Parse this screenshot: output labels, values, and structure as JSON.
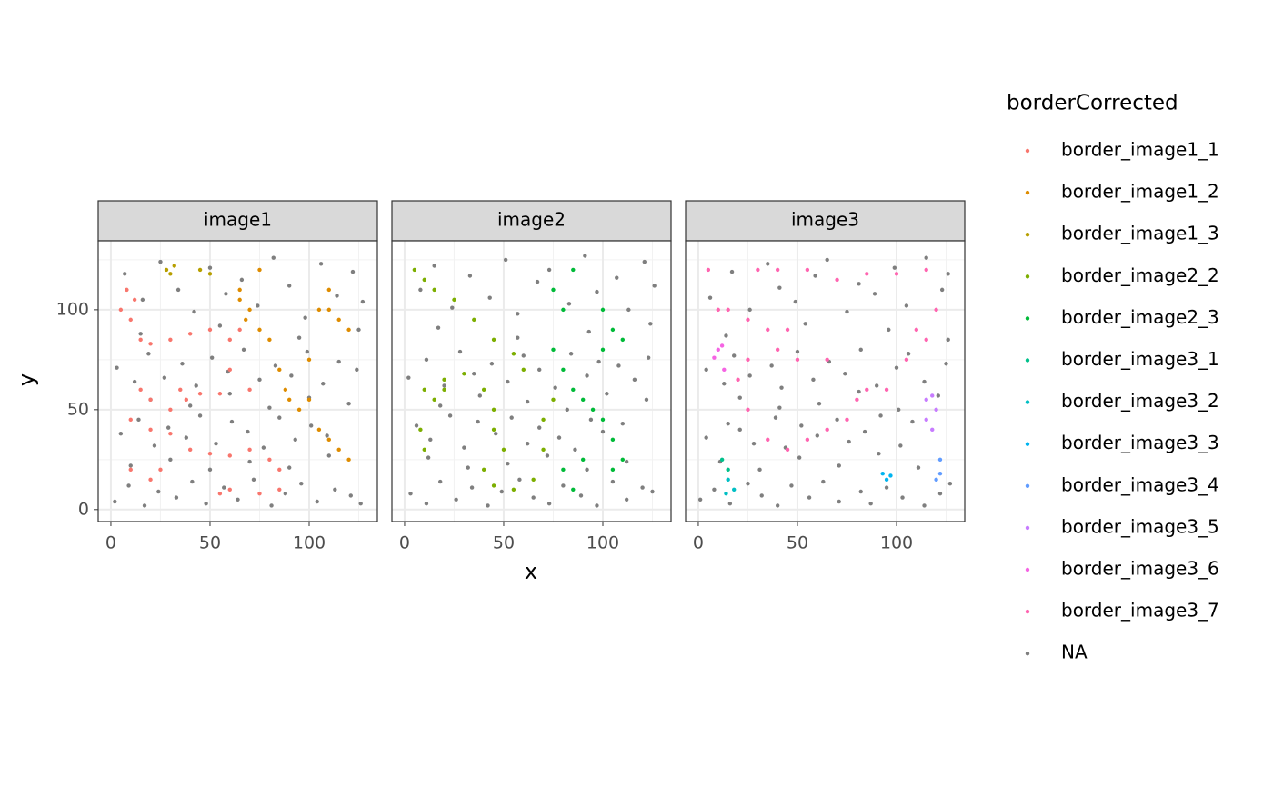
{
  "chart_data": {
    "type": "scatter",
    "xlabel": "x",
    "ylabel": "y",
    "legend_title": "borderCorrected",
    "facets": [
      "image1",
      "image2",
      "image3"
    ],
    "xlim": [
      -6.4,
      134.4
    ],
    "ylim": [
      -6,
      134.5
    ],
    "xticks": [
      0,
      50,
      100
    ],
    "yticks": [
      0,
      50,
      100
    ],
    "minor_ticks": [
      25,
      75,
      125
    ],
    "grid": true,
    "series": [
      {
        "name": "border_image1_1",
        "color": "#F8766D",
        "facet": "image1",
        "x": [
          5,
          10,
          15,
          20,
          30,
          40,
          50,
          60,
          15,
          20,
          30,
          35,
          45,
          55,
          10,
          20,
          30,
          40,
          50,
          60,
          70,
          80,
          85,
          10,
          20,
          55,
          60,
          75,
          85,
          25,
          65,
          60,
          70,
          8,
          12,
          38
        ],
        "values": [
          100,
          95,
          85,
          83,
          85,
          88,
          90,
          85,
          60,
          55,
          50,
          60,
          58,
          58,
          45,
          40,
          38,
          30,
          28,
          27,
          30,
          25,
          20,
          20,
          15,
          8,
          10,
          8,
          10,
          20,
          90,
          70,
          60,
          110,
          105,
          55
        ]
      },
      {
        "name": "border_image1_2",
        "color": "#DE8C00",
        "facet": "image1",
        "x": [
          65,
          70,
          75,
          80,
          85,
          90,
          95,
          100,
          105,
          110,
          115,
          120,
          100,
          105,
          110,
          115,
          120,
          75,
          65,
          110,
          68,
          88
        ],
        "values": [
          110,
          100,
          90,
          85,
          70,
          55,
          50,
          75,
          100,
          110,
          95,
          90,
          55,
          40,
          35,
          30,
          25,
          120,
          105,
          100,
          95,
          60
        ]
      },
      {
        "name": "border_image1_3",
        "color": "#B79F00",
        "facet": "image1",
        "x": [
          28,
          32,
          30,
          45,
          50
        ],
        "values": [
          120,
          122,
          118,
          120,
          118
        ]
      },
      {
        "name": "border_image2_2",
        "color": "#7CAE00",
        "facet": "image2",
        "x": [
          5,
          10,
          15,
          25,
          35,
          45,
          55,
          60,
          10,
          15,
          20,
          30,
          40,
          45,
          45,
          50,
          40,
          45,
          55,
          65,
          70,
          70,
          75,
          8,
          10,
          20
        ],
        "values": [
          120,
          115,
          110,
          105,
          95,
          85,
          78,
          70,
          60,
          55,
          65,
          68,
          60,
          50,
          40,
          30,
          20,
          12,
          10,
          15,
          30,
          45,
          55,
          40,
          30,
          60
        ]
      },
      {
        "name": "border_image2_3",
        "color": "#00BA38",
        "facet": "image2",
        "x": [
          75,
          80,
          85,
          75,
          80,
          85,
          90,
          95,
          100,
          105,
          110,
          105,
          90,
          80,
          85,
          100,
          105,
          110,
          100
        ],
        "values": [
          110,
          100,
          120,
          80,
          70,
          60,
          55,
          50,
          45,
          35,
          25,
          20,
          25,
          20,
          10,
          100,
          90,
          85,
          80
        ]
      },
      {
        "name": "border_image3_1",
        "color": "#00C08B",
        "facet": "image3",
        "x": [
          12,
          15
        ],
        "values": [
          25,
          20
        ]
      },
      {
        "name": "border_image3_2",
        "color": "#00BFC4",
        "facet": "image3",
        "x": [
          15,
          18,
          14
        ],
        "values": [
          15,
          10,
          8
        ]
      },
      {
        "name": "border_image3_3",
        "color": "#00B4F0",
        "facet": "image3",
        "x": [
          93,
          97,
          95
        ],
        "values": [
          18,
          17,
          15
        ]
      },
      {
        "name": "border_image3_4",
        "color": "#619CFF",
        "facet": "image3",
        "x": [
          120,
          122,
          122
        ],
        "values": [
          15,
          18,
          25
        ]
      },
      {
        "name": "border_image3_5",
        "color": "#C77CFF",
        "facet": "image3",
        "x": [
          115,
          118,
          115,
          118,
          120
        ],
        "values": [
          55,
          57,
          45,
          40,
          50
        ]
      },
      {
        "name": "border_image3_6",
        "color": "#F564E3",
        "facet": "image3",
        "x": [
          10,
          12,
          8,
          13
        ],
        "values": [
          80,
          82,
          76,
          70
        ]
      },
      {
        "name": "border_image3_7",
        "color": "#FF64B0",
        "facet": "image3",
        "x": [
          5,
          10,
          15,
          25,
          35,
          45,
          30,
          40,
          55,
          70,
          85,
          100,
          115,
          110,
          115,
          120,
          105,
          95,
          85,
          75,
          65,
          55,
          45,
          35,
          25,
          20,
          25,
          40,
          50,
          65,
          80
        ],
        "values": [
          120,
          100,
          100,
          95,
          90,
          90,
          120,
          120,
          120,
          115,
          118,
          118,
          120,
          90,
          85,
          100,
          75,
          60,
          60,
          45,
          40,
          35,
          30,
          35,
          50,
          65,
          75,
          80,
          75,
          75,
          55
        ]
      },
      {
        "name": "NA",
        "color": "#7F7F7F",
        "facet": "image1",
        "x": [
          2,
          9,
          17,
          24,
          33,
          41,
          48,
          57,
          64,
          72,
          81,
          88,
          96,
          104,
          113,
          121,
          126,
          5,
          14,
          22,
          29,
          38,
          45,
          53,
          61,
          69,
          77,
          85,
          93,
          101,
          109,
          3,
          12,
          19,
          27,
          36,
          43,
          51,
          59,
          67,
          75,
          83,
          91,
          99,
          107,
          115,
          124,
          7,
          16,
          25,
          34,
          42,
          50,
          58,
          66,
          74,
          82,
          90,
          98,
          106,
          114,
          122,
          127,
          10,
          30,
          50,
          70,
          90,
          110,
          20,
          40,
          60,
          80,
          100,
          120,
          15,
          55,
          95,
          125
        ],
        "values": [
          4,
          12,
          2,
          9,
          6,
          14,
          3,
          11,
          5,
          15,
          2,
          8,
          13,
          4,
          10,
          7,
          3,
          38,
          45,
          32,
          41,
          36,
          47,
          33,
          44,
          39,
          31,
          46,
          35,
          42,
          37,
          71,
          64,
          78,
          66,
          73,
          62,
          76,
          69,
          80,
          65,
          72,
          67,
          79,
          63,
          74,
          70,
          118,
          105,
          124,
          110,
          99,
          121,
          108,
          115,
          102,
          126,
          112,
          96,
          123,
          107,
          119,
          104,
          22,
          25,
          20,
          24,
          21,
          27,
          55,
          52,
          58,
          51,
          56,
          53,
          88,
          92,
          86,
          90
        ]
      },
      {
        "name": "NA",
        "color": "#7F7F7F",
        "facet": "image2",
        "x": [
          3,
          11,
          18,
          26,
          34,
          42,
          49,
          58,
          65,
          73,
          80,
          89,
          97,
          105,
          112,
          120,
          125,
          6,
          13,
          23,
          30,
          37,
          46,
          54,
          62,
          68,
          78,
          86,
          94,
          100,
          110,
          2,
          11,
          20,
          28,
          35,
          44,
          52,
          60,
          68,
          76,
          84,
          92,
          98,
          108,
          116,
          123,
          8,
          15,
          24,
          33,
          43,
          51,
          57,
          67,
          73,
          83,
          91,
          97,
          107,
          113,
          121,
          126,
          12,
          32,
          52,
          72,
          92,
          112,
          18,
          38,
          62,
          82,
          102,
          122,
          17,
          57,
          93,
          124
        ],
        "values": [
          8,
          3,
          14,
          5,
          11,
          2,
          9,
          15,
          6,
          3,
          12,
          7,
          2,
          14,
          5,
          11,
          9,
          42,
          35,
          47,
          31,
          44,
          38,
          46,
          33,
          41,
          36,
          30,
          45,
          39,
          43,
          66,
          75,
          62,
          79,
          68,
          73,
          64,
          77,
          70,
          61,
          78,
          67,
          74,
          72,
          65,
          76,
          110,
          122,
          101,
          117,
          106,
          125,
          98,
          114,
          120,
          103,
          127,
          109,
          116,
          100,
          124,
          112,
          26,
          21,
          23,
          27,
          20,
          24,
          52,
          57,
          54,
          50,
          58,
          55,
          91,
          86,
          89,
          93
        ]
      },
      {
        "name": "NA",
        "color": "#7F7F7F",
        "facet": "image3",
        "x": [
          1,
          8,
          16,
          25,
          32,
          40,
          47,
          56,
          63,
          71,
          82,
          87,
          95,
          103,
          114,
          122,
          127,
          4,
          15,
          21,
          28,
          39,
          44,
          52,
          60,
          70,
          76,
          84,
          92,
          102,
          108,
          4,
          13,
          18,
          26,
          37,
          42,
          50,
          58,
          66,
          74,
          82,
          90,
          100,
          106,
          114,
          125,
          6,
          17,
          26,
          35,
          41,
          49,
          59,
          65,
          75,
          81,
          89,
          99,
          105,
          115,
          123,
          126,
          11,
          31,
          51,
          71,
          91,
          111,
          21,
          41,
          61,
          81,
          101,
          121,
          14,
          54,
          96,
          126
        ],
        "values": [
          5,
          10,
          3,
          13,
          7,
          2,
          12,
          6,
          14,
          4,
          9,
          3,
          11,
          6,
          2,
          8,
          13,
          36,
          43,
          40,
          33,
          46,
          31,
          42,
          37,
          45,
          34,
          39,
          47,
          32,
          44,
          70,
          63,
          77,
          67,
          72,
          61,
          79,
          65,
          74,
          68,
          80,
          62,
          71,
          78,
          64,
          73,
          106,
          119,
          100,
          123,
          111,
          104,
          117,
          125,
          99,
          113,
          108,
          121,
          102,
          126,
          110,
          118,
          24,
          20,
          26,
          22,
          28,
          21,
          56,
          51,
          53,
          59,
          50,
          57,
          87,
          93,
          90,
          85
        ]
      }
    ]
  }
}
